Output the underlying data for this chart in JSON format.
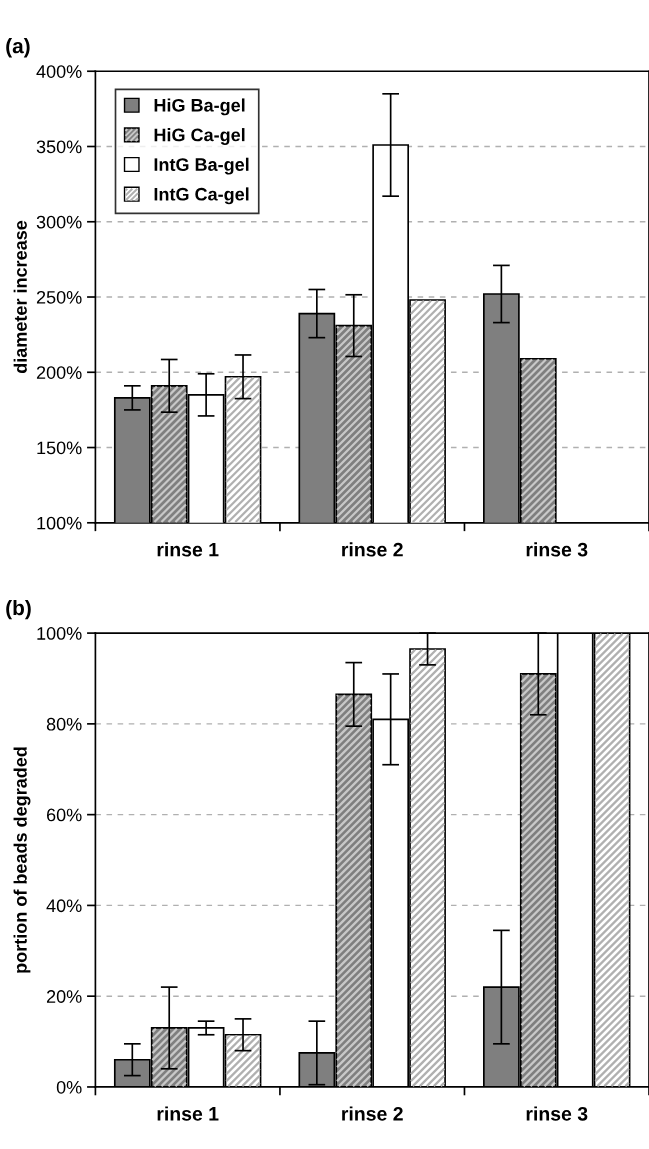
{
  "chart_data": [
    {
      "type": "bar",
      "annotations": [
        "(a)"
      ],
      "ylabel": "diameter increase",
      "categories": [
        "rinse 1",
        "rinse 2",
        "rinse 3"
      ],
      "series": [
        {
          "name": "HiG Ba-gel",
          "color": "#7f7f7f",
          "values": [
            183,
            239,
            252
          ],
          "errors": [
            8,
            16,
            19
          ]
        },
        {
          "name": "HiG Ca-gel",
          "color": "#7f7f7f",
          "values": [
            191,
            231,
            209
          ],
          "errors": [
            17.5,
            20.5,
            null
          ]
        },
        {
          "name": "IntG Ba-gel",
          "color": "#ffffff",
          "values": [
            185,
            351,
            null
          ],
          "errors": [
            14,
            34,
            null
          ]
        },
        {
          "name": "IntG Ca-gel",
          "color": "#ffffff",
          "values": [
            197,
            248,
            null
          ],
          "errors": [
            14.5,
            null,
            null
          ]
        }
      ],
      "ylim": [
        100,
        400
      ],
      "yticks": [
        {
          "value": 100,
          "label": "100%"
        },
        {
          "value": 150,
          "label": "150%"
        },
        {
          "value": 200,
          "label": "200%"
        },
        {
          "value": 250,
          "label": "250%"
        },
        {
          "value": 300,
          "label": "300%"
        },
        {
          "value": 350,
          "label": "350%"
        },
        {
          "value": 400,
          "label": "400%"
        }
      ],
      "grid": "y",
      "legend": "top left"
    },
    {
      "type": "bar",
      "annotations": [
        "(b)"
      ],
      "ylabel": "portion of beads degraded",
      "categories": [
        "rinse 1",
        "rinse 2",
        "rinse 3"
      ],
      "series": [
        {
          "color": "#7f7f7f",
          "values": [
            6,
            7.5,
            22
          ],
          "errors": [
            3.5,
            7,
            12.5
          ]
        },
        {
          "color": "#7f7f7f",
          "values": [
            13,
            86.5,
            91
          ],
          "errors": [
            9,
            7,
            9
          ]
        },
        {
          "color": "#ffffff",
          "values": [
            13,
            81,
            100
          ],
          "errors": [
            1.5,
            10,
            null
          ]
        },
        {
          "color": "#ffffff",
          "values": [
            11.5,
            96.5,
            100
          ],
          "errors": [
            3.5,
            3.5,
            null
          ]
        }
      ],
      "ylim": [
        0,
        100
      ],
      "yticks": [
        {
          "value": 0,
          "label": "0%"
        },
        {
          "value": 20,
          "label": "20%"
        },
        {
          "value": 40,
          "label": "40%"
        },
        {
          "value": 60,
          "label": "60%"
        },
        {
          "value": 80,
          "label": "80%"
        },
        {
          "value": 100,
          "label": "100%"
        }
      ],
      "grid": "y"
    }
  ]
}
